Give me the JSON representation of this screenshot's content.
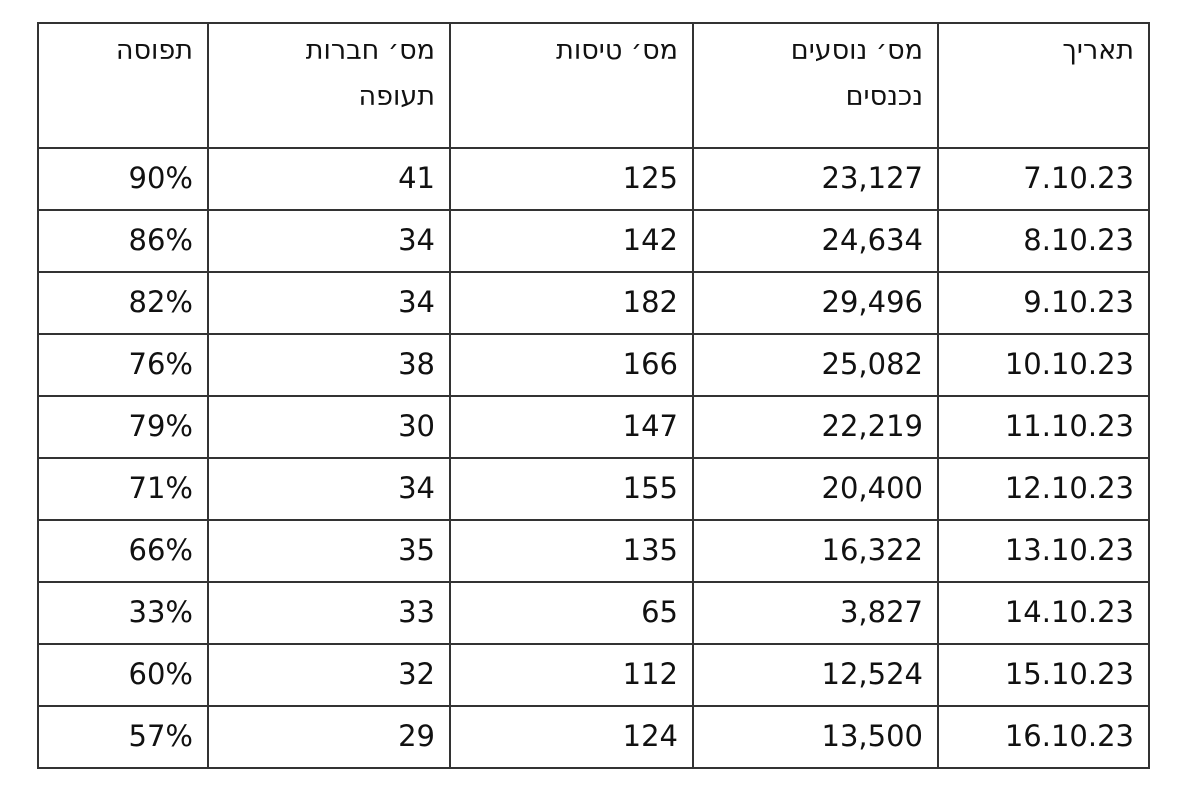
{
  "table": {
    "headers": [
      [
        "תאריך"
      ],
      [
        "מס׳ נוסעים",
        "נכנסים"
      ],
      [
        "מס׳ טיסות"
      ],
      [
        "מס׳ חברות",
        "תעופה"
      ],
      [
        "תפוסה"
      ]
    ],
    "rows": [
      [
        "7.10.23",
        "23,127",
        "125",
        "41",
        "90%"
      ],
      [
        "8.10.23",
        "24,634",
        "142",
        "34",
        "86%"
      ],
      [
        "9.10.23",
        "29,496",
        "182",
        "34",
        "82%"
      ],
      [
        "10.10.23",
        "25,082",
        "166",
        "38",
        "76%"
      ],
      [
        "11.10.23",
        "22,219",
        "147",
        "30",
        "79%"
      ],
      [
        "12.10.23",
        "20,400",
        "155",
        "34",
        "71%"
      ],
      [
        "13.10.23",
        "16,322",
        "135",
        "35",
        "66%"
      ],
      [
        "14.10.23",
        "3,827",
        "65",
        "33",
        "33%"
      ],
      [
        "15.10.23",
        "12,524",
        "112",
        "32",
        "60%"
      ],
      [
        "16.10.23",
        "13,500",
        "124",
        "29",
        "57%"
      ]
    ]
  }
}
